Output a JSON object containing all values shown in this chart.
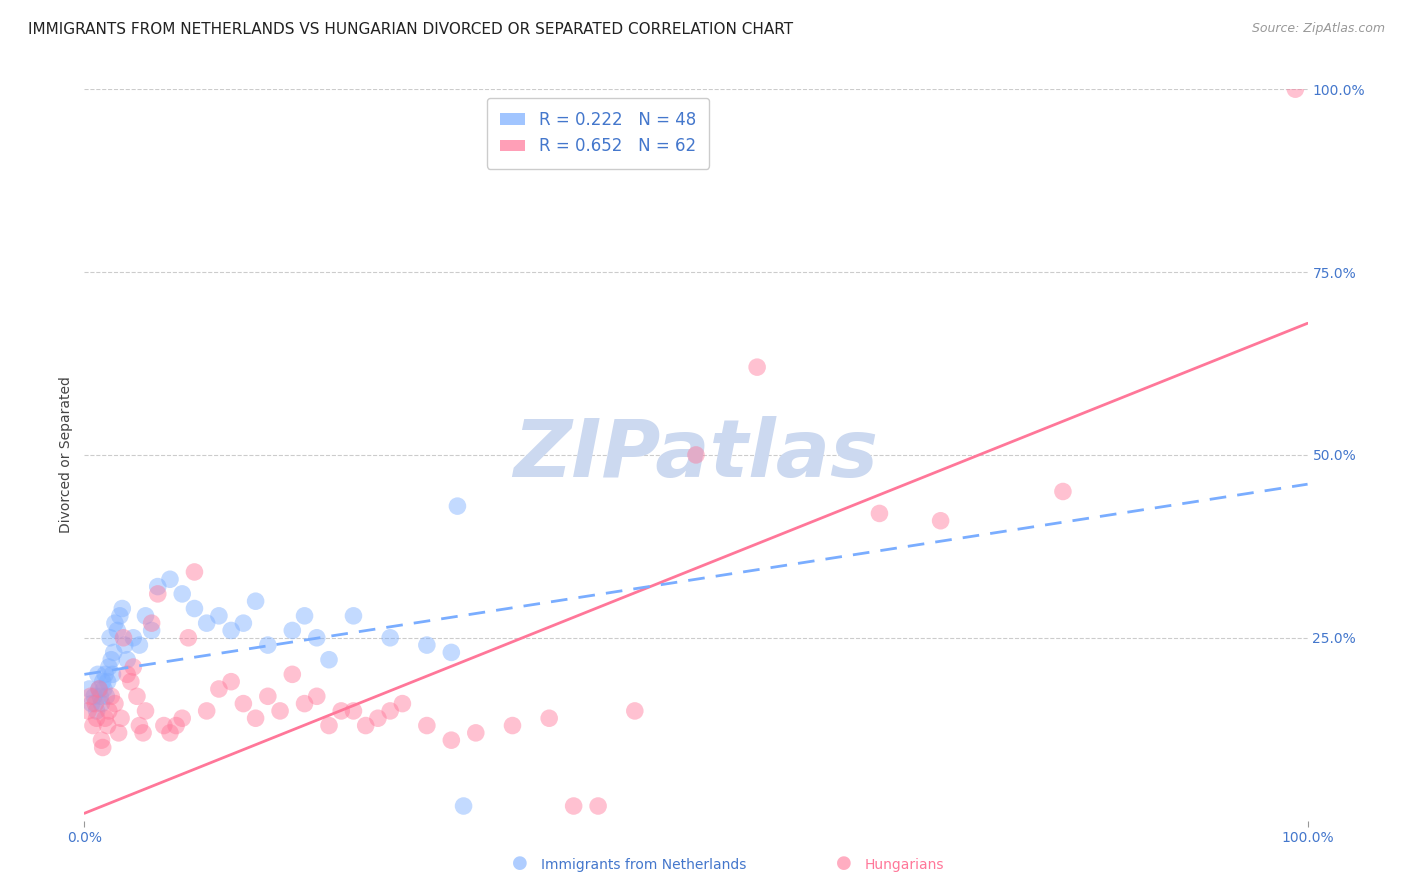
{
  "title": "IMMIGRANTS FROM NETHERLANDS VS HUNGARIAN DIVORCED OR SEPARATED CORRELATION CHART",
  "source": "Source: ZipAtlas.com",
  "ylabel": "Divorced or Separated",
  "xlim": [
    0.0,
    100.0
  ],
  "ylim": [
    0.0,
    100.0
  ],
  "xtick_labels": [
    "0.0%",
    "100.0%"
  ],
  "xtick_positions": [
    0.0,
    100.0
  ],
  "ytick_labels": [
    "100.0%",
    "75.0%",
    "50.0%",
    "25.0%"
  ],
  "ytick_positions": [
    100.0,
    75.0,
    50.0,
    25.0
  ],
  "background_color": "#ffffff",
  "watermark": "ZIPatlas",
  "watermark_color": "#ccd9f0",
  "legend_r1": "R = 0.222",
  "legend_n1": "N = 48",
  "legend_r2": "R = 0.652",
  "legend_n2": "N = 62",
  "series1_color": "#7aadff",
  "series2_color": "#ff7799",
  "series1_label": "Immigrants from Netherlands",
  "series2_label": "Hungarians",
  "title_fontsize": 11,
  "axis_label_fontsize": 10,
  "tick_label_fontsize": 10,
  "source_fontsize": 9,
  "series1_x": [
    0.4,
    0.6,
    0.8,
    1.0,
    1.1,
    1.2,
    1.3,
    1.4,
    1.5,
    1.6,
    1.7,
    1.8,
    1.9,
    2.0,
    2.1,
    2.2,
    2.3,
    2.4,
    2.5,
    2.7,
    2.9,
    3.1,
    3.3,
    3.5,
    4.0,
    4.5,
    5.0,
    5.5,
    6.0,
    7.0,
    8.0,
    9.0,
    10.0,
    11.0,
    12.0,
    13.0,
    14.0,
    15.0,
    17.0,
    18.0,
    19.0,
    20.0,
    22.0,
    25.0,
    28.0,
    30.0,
    30.5,
    31.0
  ],
  "series1_y": [
    18.0,
    16.0,
    17.0,
    15.0,
    20.0,
    18.0,
    17.0,
    16.0,
    19.0,
    18.0,
    20.0,
    17.0,
    19.0,
    21.0,
    25.0,
    22.0,
    20.0,
    23.0,
    27.0,
    26.0,
    28.0,
    29.0,
    24.0,
    22.0,
    25.0,
    24.0,
    28.0,
    26.0,
    32.0,
    33.0,
    31.0,
    29.0,
    27.0,
    28.0,
    26.0,
    27.0,
    30.0,
    24.0,
    26.0,
    28.0,
    25.0,
    22.0,
    28.0,
    25.0,
    24.0,
    23.0,
    43.0,
    2.0
  ],
  "series2_x": [
    0.3,
    0.5,
    0.7,
    0.9,
    1.0,
    1.2,
    1.4,
    1.5,
    1.7,
    1.9,
    2.0,
    2.2,
    2.5,
    2.8,
    3.0,
    3.2,
    3.5,
    3.8,
    4.0,
    4.3,
    4.5,
    4.8,
    5.0,
    5.5,
    6.0,
    6.5,
    7.0,
    7.5,
    8.0,
    8.5,
    9.0,
    10.0,
    11.0,
    12.0,
    13.0,
    14.0,
    15.0,
    16.0,
    17.0,
    18.0,
    19.0,
    20.0,
    21.0,
    22.0,
    23.0,
    24.0,
    25.0,
    26.0,
    28.0,
    30.0,
    32.0,
    35.0,
    38.0,
    40.0,
    42.0,
    45.0,
    50.0,
    55.0,
    65.0,
    70.0,
    80.0,
    99.0
  ],
  "series2_y": [
    15.0,
    17.0,
    13.0,
    16.0,
    14.0,
    18.0,
    11.0,
    10.0,
    14.0,
    13.0,
    15.0,
    17.0,
    16.0,
    12.0,
    14.0,
    25.0,
    20.0,
    19.0,
    21.0,
    17.0,
    13.0,
    12.0,
    15.0,
    27.0,
    31.0,
    13.0,
    12.0,
    13.0,
    14.0,
    25.0,
    34.0,
    15.0,
    18.0,
    19.0,
    16.0,
    14.0,
    17.0,
    15.0,
    20.0,
    16.0,
    17.0,
    13.0,
    15.0,
    15.0,
    13.0,
    14.0,
    15.0,
    16.0,
    13.0,
    11.0,
    12.0,
    13.0,
    14.0,
    2.0,
    2.0,
    15.0,
    50.0,
    62.0,
    42.0,
    41.0,
    45.0,
    100.0
  ],
  "reg1_x0": 0.0,
  "reg1_x1": 100.0,
  "reg1_y0": 20.0,
  "reg1_y1": 46.0,
  "reg2_x0": 0.0,
  "reg2_x1": 100.0,
  "reg2_y0": 1.0,
  "reg2_y1": 68.0,
  "grid_color": "#cccccc",
  "tick_color": "#4477cc"
}
